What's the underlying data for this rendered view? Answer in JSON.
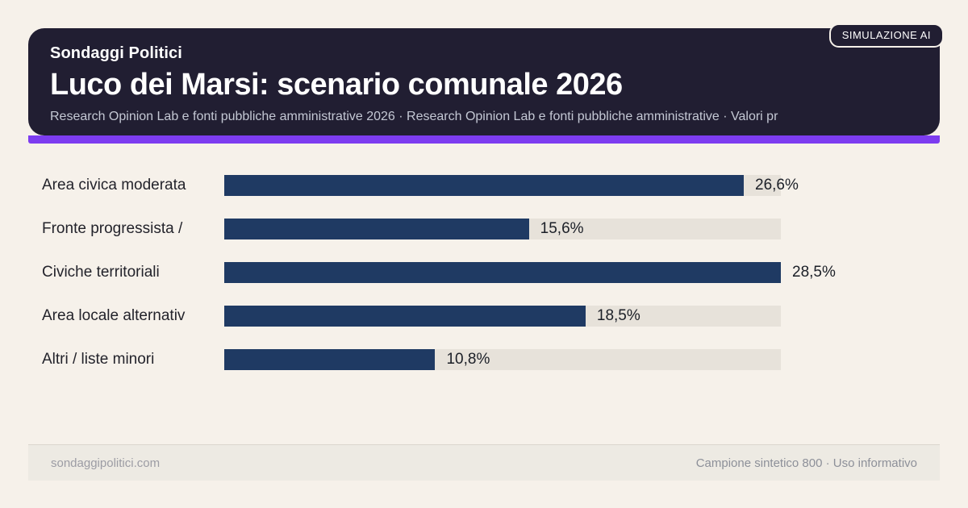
{
  "badge": {
    "label": "SIMULAZIONE AI"
  },
  "header": {
    "kicker": "Sondaggi Politici",
    "title": "Luco dei Marsi: scenario comunale 2026",
    "subtitle": "Research Opinion Lab e fonti pubbliche amministrative 2026 · Research Opinion Lab e fonti pubbliche amministrative · Valori pr"
  },
  "chart_data": {
    "type": "bar",
    "orientation": "horizontal",
    "title": "Luco dei Marsi: scenario comunale 2026",
    "categories": [
      "Area civica moderata",
      "Fronte progressista /",
      "Civiche territoriali",
      "Area locale alternativ",
      "Altri / liste minori"
    ],
    "values": [
      26.6,
      15.6,
      28.5,
      18.5,
      10.8
    ],
    "value_labels": [
      "26,6%",
      "15,6%",
      "28,5%",
      "18,5%",
      "10,8%"
    ],
    "xlim": [
      0,
      28.5
    ],
    "grid": false,
    "legend": false,
    "bar_color": "#1f3a63",
    "track_color": "#e7e2da"
  },
  "footer": {
    "left": "sondaggipolitici.com",
    "right": "Campione sintetico 800 · Uso informativo"
  },
  "colors": {
    "background": "#f6f1ea",
    "card": "#211e32",
    "accent": "#7d3cf0",
    "bar": "#1f3a63",
    "track": "#e7e2da"
  }
}
